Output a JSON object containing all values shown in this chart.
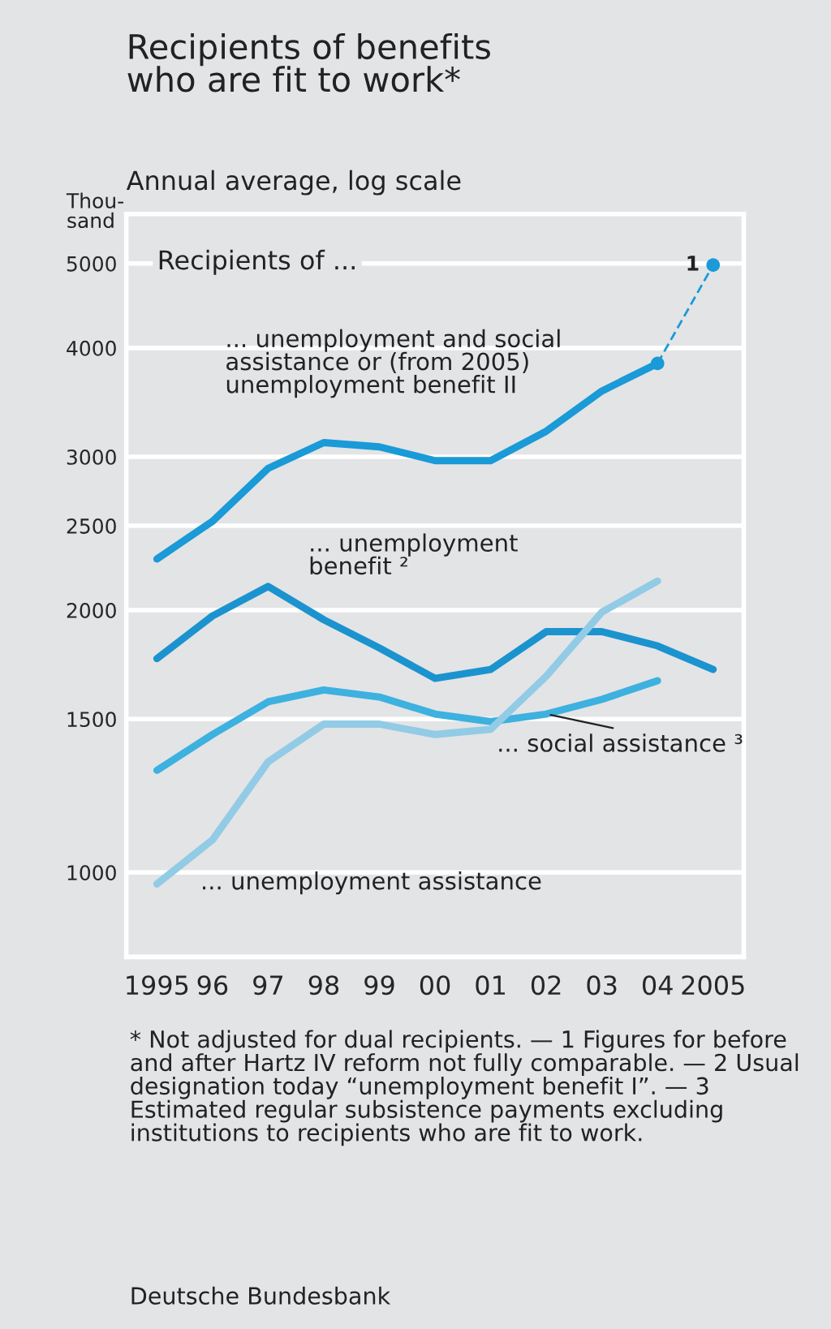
{
  "chart_data": {
    "type": "line",
    "title": "Recipients of benefits\nwho are fit to work*",
    "subtitle": "Annual average, log scale",
    "ylabel": "Thou-\nsand",
    "categories": [
      "1995",
      "96",
      "97",
      "98",
      "99",
      "00",
      "01",
      "02",
      "03",
      "04",
      "2005"
    ],
    "series": [
      {
        "name": "... unemployment and social\nassistance or (from 2005)\nunemployment benefit II",
        "color": "#1a9ad7",
        "values": [
          2290,
          2530,
          2910,
          3115,
          3080,
          2970,
          2970,
          3210,
          3570,
          3840,
          null
        ]
      },
      {
        "type": "line",
        "line_style": "dashed",
        "marker": "circle",
        "color": "#1a9ad7",
        "values": [
          null,
          null,
          null,
          null,
          null,
          null,
          null,
          null,
          null,
          3840,
          4980
        ]
      },
      {
        "name": "... unemployment\nbenefit ²",
        "color": "#1b93cf",
        "values": [
          1760,
          1970,
          2130,
          1950,
          1810,
          1670,
          1710,
          1890,
          1890,
          1820,
          1710
        ]
      },
      {
        "name": "... social assistance ³",
        "color": "#3db1df",
        "values": [
          1310,
          1440,
          1570,
          1620,
          1590,
          1520,
          1490,
          1520,
          1580,
          1660,
          null
        ]
      },
      {
        "name": "... unemployment assistance",
        "color": "#92cbe5",
        "values": [
          970,
          1090,
          1340,
          1480,
          1480,
          1440,
          1460,
          1680,
          1990,
          2160,
          null
        ]
      }
    ],
    "log": true,
    "ylim": [
      800,
      5700
    ],
    "yticks": [
      1000,
      1500,
      2000,
      2500,
      3000,
      4000,
      5000
    ],
    "grid": "y",
    "legend": false,
    "line_style": "solid",
    "marker": "none",
    "annotations": [
      "Recipients of ...",
      {
        "text": "1",
        "x": "2005",
        "y": 4980
      },
      "* Not adjusted for dual recipients. — 1 Figures for before and after Hartz IV reform not fully comparable. — 2 Usual designation today “unemployment benefit I”. — 3 Estimated regular subsistence payments excluding institutions to recipients who are fit to work.",
      "Deutsche Bundesbank"
    ]
  }
}
